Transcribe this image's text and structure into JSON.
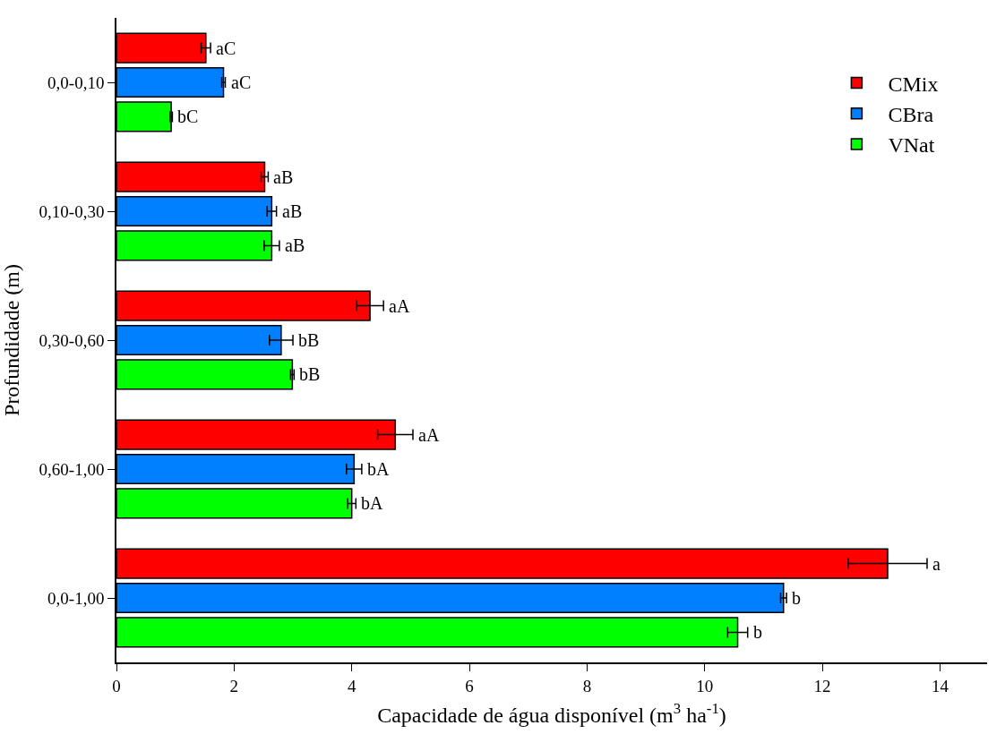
{
  "chart_data": {
    "type": "bar",
    "orientation": "horizontal",
    "xlabel": "Capacidade de água disponível (m$^{3}$ ha$^{-1}$)",
    "ylabel": "Profundidade (m)",
    "categories": [
      "0,0-0,10",
      "0,10-0,30",
      "0,30-0,60",
      "0,60-1,00",
      "0,0-1,00"
    ],
    "series": [
      {
        "name": "CMix",
        "color": "#ff0000",
        "values": [
          1.52,
          2.52,
          4.31,
          4.74,
          13.11
        ],
        "errors": [
          0.08,
          0.06,
          0.23,
          0.3,
          0.67
        ],
        "value_labels": [
          "aC",
          "aB",
          "aA",
          "aA",
          "a"
        ]
      },
      {
        "name": "CBra",
        "color": "#0080ff",
        "values": [
          1.82,
          2.64,
          2.8,
          4.04,
          11.34
        ],
        "errors": [
          0.03,
          0.08,
          0.2,
          0.13,
          0.05
        ],
        "value_labels": [
          "aC",
          "aB",
          "bB",
          "bA",
          "b"
        ]
      },
      {
        "name": "VNat",
        "color": "#00ff00",
        "values": [
          0.93,
          2.64,
          2.99,
          4.0,
          10.56
        ],
        "errors": [
          0.02,
          0.13,
          0.03,
          0.07,
          0.17
        ],
        "value_labels": [
          "bC",
          "aB",
          "bB",
          "bA",
          "b"
        ]
      }
    ],
    "xlim": [
      0,
      14.8
    ],
    "xticks": [
      0,
      2,
      4,
      6,
      8,
      10,
      12,
      14
    ],
    "grid": false,
    "legend": "top right"
  }
}
